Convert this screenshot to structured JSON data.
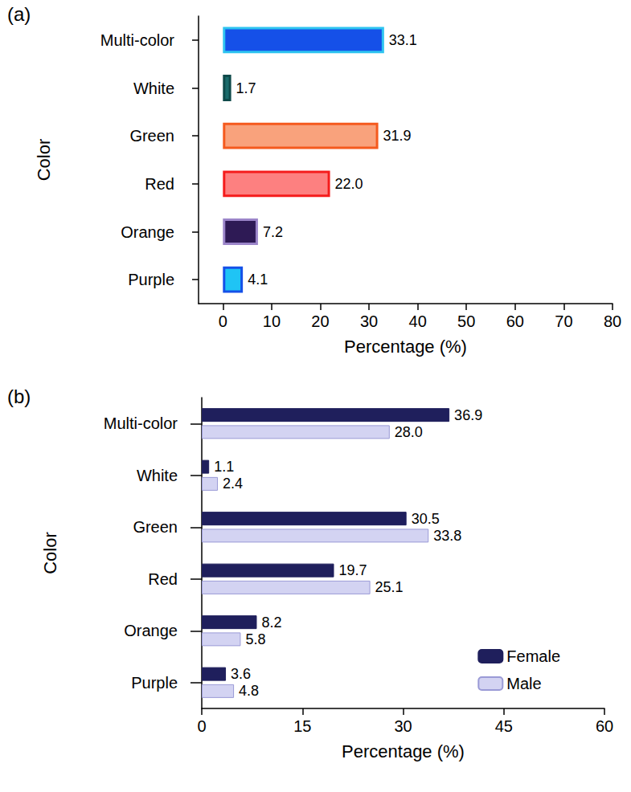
{
  "chart_data": [
    {
      "type": "bar",
      "title": "(a)",
      "orientation": "horizontal",
      "xlabel": "Percentage (%)",
      "ylabel": "Color",
      "categories": [
        "Multi-color",
        "White",
        "Green",
        "Red",
        "Orange",
        "Purple"
      ],
      "values": [
        33.1,
        1.7,
        31.9,
        22.0,
        7.2,
        4.1
      ],
      "value_labels": [
        "33.1",
        "1.7",
        "31.9",
        "22.0",
        "7.2",
        "4.1"
      ],
      "colors": [
        "#1550e8",
        "#1a6b6b",
        "#f9a27c",
        "#fd8080",
        "#2e1a55",
        "#1fc4f5"
      ],
      "xlim": [
        -5,
        80
      ],
      "xticks": [
        0,
        10,
        20,
        30,
        40,
        50,
        60,
        70,
        80
      ],
      "grid": false,
      "data_labels": true
    },
    {
      "type": "bar",
      "title": "(b)",
      "orientation": "horizontal",
      "xlabel": "Percentage (%)",
      "ylabel": "Color",
      "categories": [
        "Multi-color",
        "White",
        "Green",
        "Red",
        "Orange",
        "Purple"
      ],
      "series": [
        {
          "name": "Female",
          "color": "#1f1f5c",
          "values": [
            36.9,
            1.1,
            30.5,
            19.7,
            8.2,
            3.6
          ],
          "value_labels": [
            "36.9",
            "1.1",
            "30.5",
            "19.7",
            "8.2",
            "3.6"
          ]
        },
        {
          "name": "Male",
          "color": "#d3d3f2",
          "values": [
            28.0,
            2.4,
            33.8,
            25.1,
            5.8,
            4.8
          ],
          "value_labels": [
            "28.0",
            "2.4",
            "33.8",
            "25.1",
            "5.8",
            "4.8"
          ]
        }
      ],
      "xlim": [
        0,
        60
      ],
      "xticks": [
        0,
        15,
        30,
        45,
        60
      ],
      "grid": false,
      "data_labels": true,
      "legend": "lower right"
    }
  ]
}
